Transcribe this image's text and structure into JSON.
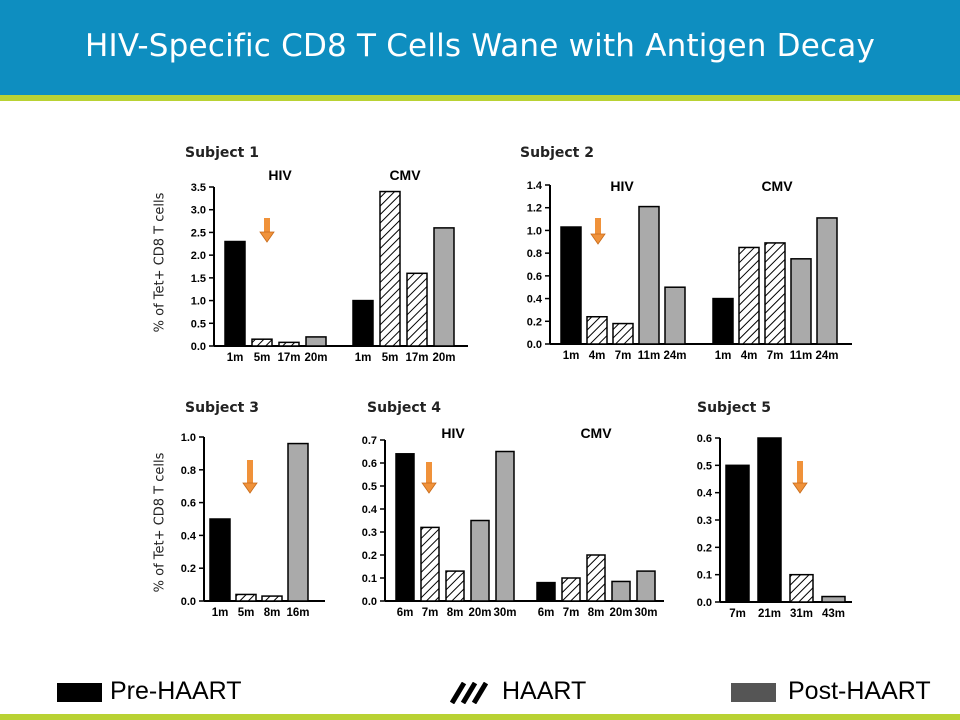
{
  "title": "HIV-Specific CD8 T Cells Wane with Antigen Decay",
  "ylabel": "% of Tet+ CD8 T cells",
  "colors": {
    "title_bar": "#0e8ec0",
    "stripe": "#b9d233",
    "pre": "#000000",
    "post": "#aaaaaa",
    "arrow": "#f0923a"
  },
  "legend": {
    "pre": "Pre-HAART",
    "haart": "HAART",
    "post": "Post-HAART"
  },
  "chart_data": [
    {
      "type": "bar",
      "subject": "Subject 1",
      "ylim": [
        0,
        3.5
      ],
      "yticks": [
        "0.0",
        "0.5",
        "1.0",
        "1.5",
        "2.0",
        "2.5",
        "3.0",
        "3.5"
      ],
      "groups": [
        {
          "name": "HIV",
          "categories": [
            "1m",
            "5m",
            "17m",
            "20m"
          ],
          "values": [
            2.3,
            0.15,
            0.08,
            0.2
          ],
          "phases": [
            "pre",
            "haart",
            "haart",
            "post"
          ]
        },
        {
          "name": "CMV",
          "categories": [
            "1m",
            "5m",
            "17m",
            "20m"
          ],
          "values": [
            1.0,
            3.4,
            1.6,
            2.6
          ],
          "phases": [
            "pre",
            "haart",
            "haart",
            "post"
          ]
        }
      ]
    },
    {
      "type": "bar",
      "subject": "Subject 2",
      "ylim": [
        0,
        1.4
      ],
      "yticks": [
        "0.0",
        "0.2",
        "0.4",
        "0.6",
        "0.8",
        "1.0",
        "1.2",
        "1.4"
      ],
      "groups": [
        {
          "name": "HIV",
          "categories": [
            "1m",
            "4m",
            "7m",
            "11m",
            "24m"
          ],
          "values": [
            1.03,
            0.24,
            0.18,
            1.21,
            0.5
          ],
          "phases": [
            "pre",
            "haart",
            "haart",
            "post",
            "post"
          ]
        },
        {
          "name": "CMV",
          "categories": [
            "1m",
            "4m",
            "7m",
            "11m",
            "24m"
          ],
          "values": [
            0.4,
            0.85,
            0.89,
            0.75,
            1.11
          ],
          "phases": [
            "pre",
            "haart",
            "haart",
            "post",
            "post"
          ]
        }
      ]
    },
    {
      "type": "bar",
      "subject": "Subject 3",
      "ylim": [
        0,
        1.0
      ],
      "yticks": [
        "0.0",
        "0.2",
        "0.4",
        "0.6",
        "0.8",
        "1.0"
      ],
      "groups": [
        {
          "name": "",
          "categories": [
            "1m",
            "5m",
            "8m",
            "16m"
          ],
          "values": [
            0.5,
            0.04,
            0.03,
            0.96
          ],
          "phases": [
            "pre",
            "haart",
            "haart",
            "post"
          ]
        }
      ]
    },
    {
      "type": "bar",
      "subject": "Subject 4",
      "ylim": [
        0,
        0.7
      ],
      "yticks": [
        "0.0",
        "0.1",
        "0.2",
        "0.3",
        "0.4",
        "0.5",
        "0.6",
        "0.7"
      ],
      "groups": [
        {
          "name": "HIV",
          "categories": [
            "6m",
            "7m",
            "8m",
            "20m",
            "30m"
          ],
          "values": [
            0.64,
            0.32,
            0.13,
            0.35,
            0.65
          ],
          "phases": [
            "pre",
            "haart",
            "haart",
            "post",
            "post"
          ]
        },
        {
          "name": "CMV",
          "categories": [
            "6m",
            "7m",
            "8m",
            "20m",
            "30m"
          ],
          "values": [
            0.08,
            0.1,
            0.2,
            0.085,
            0.13
          ],
          "phases": [
            "pre",
            "haart",
            "haart",
            "post",
            "post"
          ]
        }
      ]
    },
    {
      "type": "bar",
      "subject": "Subject 5",
      "ylim": [
        0,
        0.6
      ],
      "yticks": [
        "0.0",
        "0.1",
        "0.2",
        "0.3",
        "0.4",
        "0.5",
        "0.6"
      ],
      "groups": [
        {
          "name": "",
          "categories": [
            "7m",
            "21m",
            "31m",
            "43m"
          ],
          "values": [
            0.5,
            0.6,
            0.1,
            0.02
          ],
          "phases": [
            "pre",
            "pre",
            "haart",
            "post"
          ]
        }
      ]
    }
  ]
}
